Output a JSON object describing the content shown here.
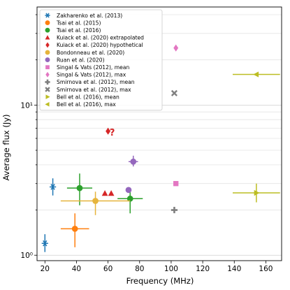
{
  "chart_data": {
    "type": "scatter",
    "xlabel": "Frequency (MHz)",
    "ylabel": "Average flux (Jy)",
    "xlim": [
      15,
      170
    ],
    "ylim": [
      0.92,
      45
    ],
    "yscale": "log",
    "x_ticks": [
      20,
      40,
      60,
      80,
      100,
      120,
      140,
      160
    ],
    "y_ticks": [
      {
        "value": 1,
        "label": "10⁰"
      },
      {
        "value": 10,
        "label": "10¹"
      }
    ],
    "grid": "horizontal",
    "legend_position": "top-left",
    "annotations": [
      {
        "text": "?",
        "x": 61,
        "y": 6.6,
        "color": "#d62728"
      }
    ],
    "series": [
      {
        "name": "Zakharenko et al. (2013)",
        "marker": "asterisk",
        "color": "#1f77b4",
        "points": [
          {
            "x": 20,
            "y": 1.2,
            "xerr": 0,
            "ylo": 1.05,
            "yhi": 1.38
          },
          {
            "x": 25,
            "y": 2.85,
            "xerr": 0,
            "ylo": 2.5,
            "yhi": 3.25
          }
        ]
      },
      {
        "name": "Tsai et al. (2015)",
        "marker": "circle",
        "color": "#ff7f0e",
        "points": [
          {
            "x": 39,
            "y": 1.5,
            "xerr": 9,
            "ylo": 1.13,
            "yhi": 1.9
          }
        ]
      },
      {
        "name": "Tsai et al. (2016)",
        "marker": "circle",
        "color": "#2ca02c",
        "points": [
          {
            "x": 42,
            "y": 2.8,
            "xerr": 8,
            "ylo": 2.15,
            "yhi": 3.5
          },
          {
            "x": 74,
            "y": 2.38,
            "xerr": 8,
            "ylo": 1.9,
            "yhi": 2.8
          }
        ]
      },
      {
        "name": "Kuiack et al. (2020) extrapolated",
        "marker": "triangle",
        "color": "#d62728",
        "points": [
          {
            "x": 58,
            "y": 2.58
          },
          {
            "x": 62,
            "y": 2.58
          }
        ]
      },
      {
        "name": "Kuiack et al. (2020) hypothetical",
        "marker": "diamond",
        "color": "#d62728",
        "points": [
          {
            "x": 60,
            "y": 6.7
          }
        ]
      },
      {
        "name": "Bondonneau et al. (2020)",
        "marker": "circle",
        "color": "#e6b43c",
        "points": [
          {
            "x": 52,
            "y": 2.3,
            "xerr": 22,
            "ylo": 1.85,
            "yhi": 2.65
          }
        ]
      },
      {
        "name": "Ruan et al. (2020)",
        "marker": "circle",
        "color": "#9467bd",
        "points": [
          {
            "x": 76,
            "y": 4.2,
            "xerr": 3,
            "ylo": 3.9,
            "yhi": 4.6
          },
          {
            "x": 73,
            "y": 2.72
          }
        ]
      },
      {
        "name": "Singal & Vats (2012), mean",
        "marker": "square",
        "color": "#e377c2",
        "points": [
          {
            "x": 103,
            "y": 3.0
          }
        ]
      },
      {
        "name": "Singal & Vats (2012), max",
        "marker": "diamond",
        "color": "#e377c2",
        "points": [
          {
            "x": 103,
            "y": 24
          }
        ]
      },
      {
        "name": "Smirnova et al. (2012), mean",
        "marker": "plus",
        "color": "#7f7f7f",
        "points": [
          {
            "x": 102,
            "y": 2.0
          }
        ]
      },
      {
        "name": "Smirnova et al. (2012), max",
        "marker": "x",
        "color": "#7f7f7f",
        "points": [
          {
            "x": 102,
            "y": 12
          }
        ]
      },
      {
        "name": "Bell et al. (2016), mean",
        "marker": "tri_right",
        "color": "#bcbd22",
        "points": [
          {
            "x": 154,
            "y": 2.6,
            "xerr": 15,
            "ylo": 2.25,
            "yhi": 3.0
          }
        ]
      },
      {
        "name": "Bell et al. (2016), max",
        "marker": "tri_left",
        "color": "#bcbd22",
        "points": [
          {
            "x": 154,
            "y": 16,
            "xerr": 15
          }
        ]
      }
    ]
  }
}
